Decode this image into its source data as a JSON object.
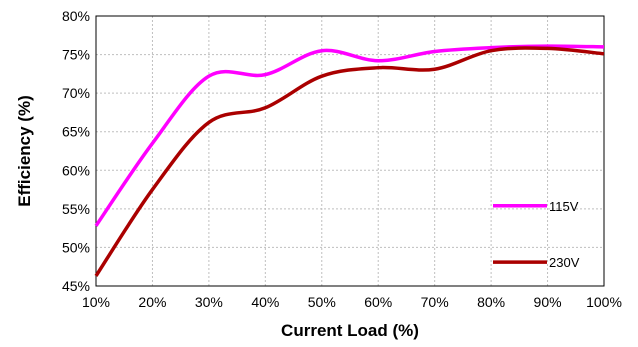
{
  "chart_data": {
    "type": "line",
    "xlabel": "Current Load (%)",
    "ylabel": "Efficiency (%)",
    "x": [
      10,
      20,
      30,
      40,
      50,
      60,
      70,
      80,
      90,
      100
    ],
    "xlim": [
      10,
      100
    ],
    "ylim": [
      45,
      80
    ],
    "x_ticks": [
      "10%",
      "20%",
      "30%",
      "40%",
      "50%",
      "60%",
      "70%",
      "80%",
      "90%",
      "100%"
    ],
    "y_ticks": [
      "45%",
      "50%",
      "55%",
      "60%",
      "65%",
      "70%",
      "75%",
      "80%"
    ],
    "grid": true,
    "legend_position": "right",
    "series": [
      {
        "name": "115V",
        "color": "#ff00ff",
        "values": [
          52.8,
          63.5,
          72.2,
          72.4,
          75.5,
          74.2,
          75.4,
          75.9,
          76.1,
          76.0
        ]
      },
      {
        "name": "230V",
        "color": "#aa0000",
        "values": [
          46.3,
          57.5,
          66.2,
          68.1,
          72.2,
          73.3,
          73.1,
          75.5,
          75.8,
          75.1
        ]
      }
    ]
  }
}
